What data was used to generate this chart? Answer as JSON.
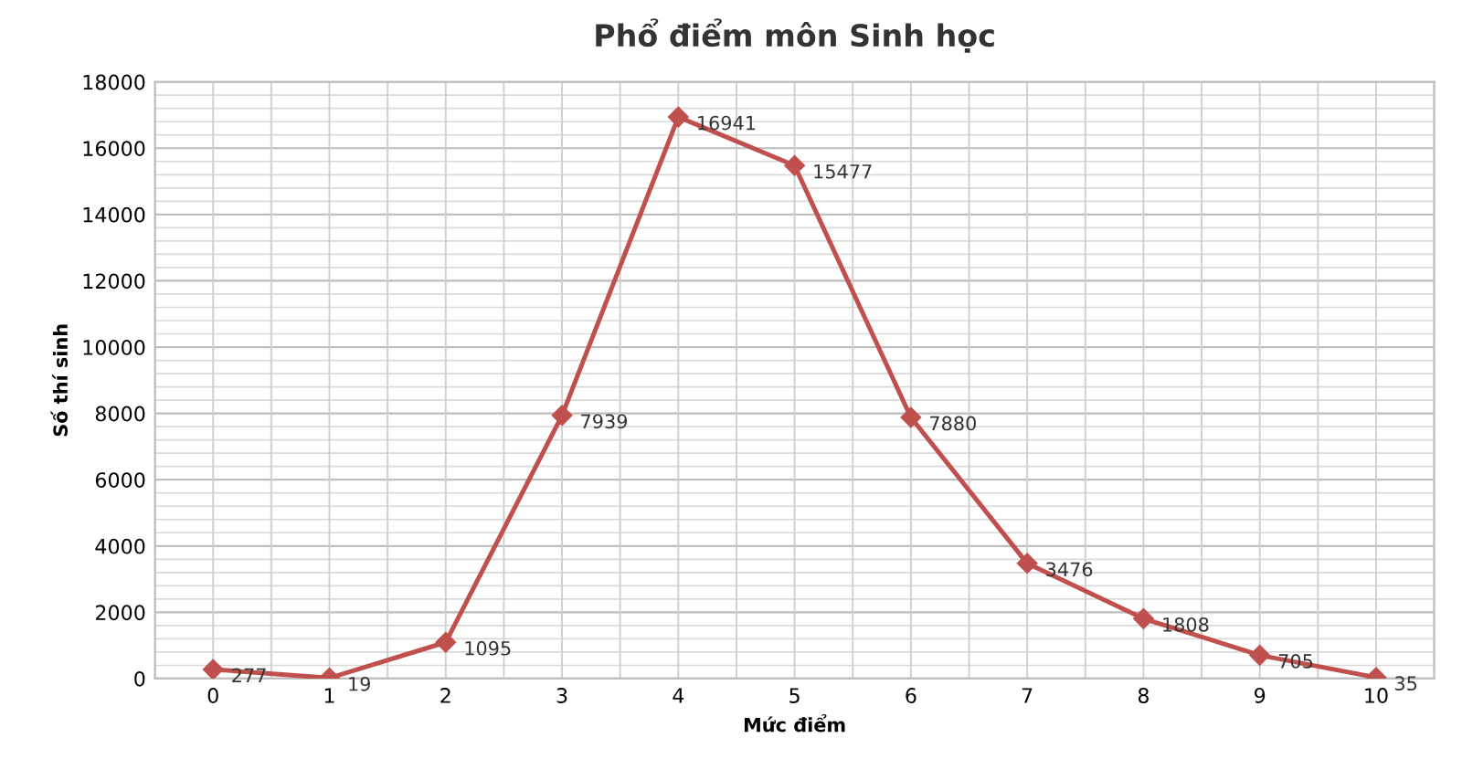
{
  "chart_data": {
    "type": "line",
    "title": "Phổ điểm môn Sinh học",
    "xlabel": "Mức điểm",
    "ylabel": "Số thí sinh",
    "categories": [
      "0",
      "1",
      "2",
      "3",
      "4",
      "5",
      "6",
      "7",
      "8",
      "9",
      "10"
    ],
    "series": [
      {
        "color": "#c0504d",
        "values": [
          277,
          19,
          1095,
          7939,
          16941,
          15477,
          7880,
          3476,
          1808,
          705,
          35
        ]
      }
    ],
    "ylim": [
      0,
      18000
    ],
    "yticks": [
      0,
      2000,
      4000,
      6000,
      8000,
      10000,
      12000,
      14000,
      16000,
      18000
    ],
    "grid": true,
    "marker": "diamond",
    "line_style": "solid",
    "data_labels": true,
    "legend": false
  }
}
